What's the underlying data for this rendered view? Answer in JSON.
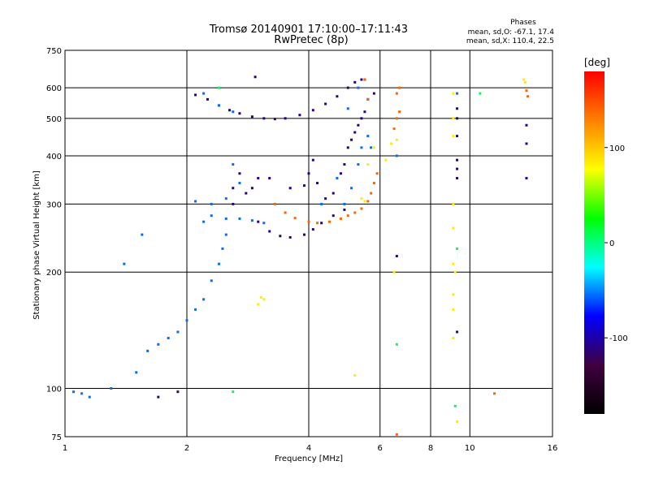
{
  "chart_data": {
    "type": "scatter",
    "title": "Tromsø 20140901 17:10:00–17:11:43",
    "subtitle": "RwPretec (8p)",
    "xlabel": "Frequency [MHz]",
    "ylabel": "Stationary phase Virtual Height [km]",
    "x_scale": "log",
    "y_scale": "log",
    "xlim": [
      1,
      16
    ],
    "ylim": [
      75,
      750
    ],
    "x_ticks": [
      1,
      2,
      4,
      6,
      8,
      10,
      16
    ],
    "y_ticks": [
      75,
      100,
      200,
      300,
      400,
      500,
      600,
      750
    ],
    "grid": true,
    "phases_header": "Phases",
    "phases_o": "mean, sd,O: -67.1, 17.4",
    "phases_x": "mean, sd,X: 110.4, 22.5",
    "colorbar": {
      "label": "[deg]",
      "range": [
        -180,
        180
      ],
      "ticks": [
        100,
        0,
        -100
      ],
      "colors": [
        "#ff0000",
        "#ff8000",
        "#ffff00",
        "#00ff00",
        "#00ffff",
        "#0000ff",
        "#400040",
        "#000000"
      ]
    },
    "series": [
      {
        "phase": -110,
        "points": [
          [
            2.1,
            575
          ],
          [
            2.25,
            560
          ],
          [
            2.4,
            540
          ],
          [
            2.55,
            525
          ],
          [
            2.7,
            515
          ],
          [
            2.9,
            505
          ],
          [
            3.1,
            500
          ],
          [
            3.3,
            498
          ],
          [
            3.5,
            500
          ],
          [
            3.8,
            510
          ],
          [
            4.1,
            525
          ],
          [
            4.4,
            545
          ],
          [
            4.7,
            570
          ],
          [
            5.0,
            600
          ],
          [
            5.2,
            620
          ],
          [
            5.4,
            630
          ],
          [
            5.5,
            630
          ],
          [
            2.8,
            320
          ],
          [
            2.9,
            330
          ],
          [
            3.0,
            350
          ],
          [
            3.2,
            350
          ],
          [
            3.6,
            330
          ],
          [
            3.9,
            335
          ],
          [
            4.0,
            360
          ],
          [
            4.1,
            390
          ],
          [
            4.2,
            340
          ],
          [
            4.4,
            310
          ],
          [
            4.6,
            320
          ],
          [
            4.8,
            360
          ],
          [
            4.9,
            380
          ],
          [
            5.0,
            420
          ],
          [
            5.1,
            440
          ],
          [
            5.2,
            460
          ],
          [
            5.3,
            480
          ],
          [
            5.4,
            500
          ],
          [
            5.5,
            520
          ],
          [
            5.6,
            560
          ],
          [
            5.8,
            580
          ],
          [
            3.0,
            270
          ],
          [
            3.2,
            255
          ],
          [
            3.4,
            248
          ],
          [
            3.6,
            246
          ],
          [
            3.9,
            250
          ],
          [
            4.1,
            258
          ],
          [
            4.3,
            268
          ],
          [
            4.6,
            280
          ],
          [
            4.9,
            290
          ],
          [
            2.6,
            300
          ],
          [
            1.9,
            98
          ],
          [
            1.7,
            95
          ],
          [
            2.95,
            640
          ],
          [
            6.6,
            220
          ],
          [
            9.3,
            350
          ],
          [
            9.3,
            370
          ],
          [
            9.3,
            390
          ],
          [
            9.3,
            450
          ],
          [
            9.3,
            500
          ],
          [
            9.3,
            530
          ],
          [
            9.3,
            140
          ],
          [
            13.8,
            350
          ],
          [
            13.8,
            430
          ],
          [
            13.8,
            480
          ],
          [
            2.6,
            330
          ],
          [
            2.7,
            360
          ]
        ]
      },
      {
        "phase": -55,
        "points": [
          [
            1.05,
            98
          ],
          [
            1.1,
            97
          ],
          [
            1.15,
            95
          ],
          [
            1.3,
            100
          ],
          [
            1.5,
            110
          ],
          [
            1.6,
            125
          ],
          [
            1.7,
            130
          ],
          [
            1.8,
            135
          ],
          [
            1.9,
            140
          ],
          [
            2.0,
            150
          ],
          [
            2.1,
            160
          ],
          [
            2.2,
            170
          ],
          [
            2.3,
            190
          ],
          [
            2.4,
            210
          ],
          [
            2.45,
            230
          ],
          [
            2.5,
            250
          ],
          [
            2.2,
            270
          ],
          [
            2.3,
            280
          ],
          [
            2.5,
            275
          ],
          [
            2.7,
            275
          ],
          [
            2.9,
            272
          ],
          [
            3.1,
            268
          ],
          [
            2.4,
            540
          ],
          [
            2.6,
            520
          ],
          [
            2.2,
            580
          ],
          [
            2.6,
            380
          ],
          [
            2.7,
            340
          ],
          [
            2.5,
            310
          ],
          [
            2.3,
            300
          ],
          [
            2.1,
            305
          ],
          [
            4.7,
            350
          ],
          [
            4.9,
            300
          ],
          [
            5.1,
            330
          ],
          [
            5.3,
            380
          ],
          [
            5.4,
            420
          ],
          [
            5.6,
            450
          ],
          [
            1.55,
            250
          ],
          [
            1.4,
            210
          ],
          [
            5.0,
            530
          ],
          [
            5.3,
            600
          ],
          [
            9.3,
            580
          ],
          [
            6.6,
            400
          ],
          [
            5.7,
            420
          ],
          [
            4.3,
            300
          ]
        ]
      },
      {
        "phase": 140,
        "points": [
          [
            3.3,
            300
          ],
          [
            3.5,
            285
          ],
          [
            3.7,
            276
          ],
          [
            4.0,
            270
          ],
          [
            4.2,
            268
          ],
          [
            4.5,
            270
          ],
          [
            4.8,
            275
          ],
          [
            5.0,
            280
          ],
          [
            5.2,
            285
          ],
          [
            5.4,
            292
          ],
          [
            5.6,
            305
          ],
          [
            5.7,
            320
          ],
          [
            5.8,
            340
          ],
          [
            5.9,
            360
          ],
          [
            6.5,
            470
          ],
          [
            6.6,
            500
          ],
          [
            6.7,
            520
          ],
          [
            5.6,
            560
          ],
          [
            5.5,
            630
          ],
          [
            6.6,
            580
          ],
          [
            6.7,
            600
          ],
          [
            13.8,
            590
          ],
          [
            13.9,
            570
          ],
          [
            6.6,
            76
          ],
          [
            11.5,
            97
          ]
        ]
      },
      {
        "phase": 85,
        "points": [
          [
            3.0,
            165
          ],
          [
            3.05,
            172
          ],
          [
            3.1,
            170
          ],
          [
            5.4,
            310
          ],
          [
            5.5,
            305
          ],
          [
            5.6,
            380
          ],
          [
            5.8,
            420
          ],
          [
            6.2,
            390
          ],
          [
            6.4,
            430
          ],
          [
            6.6,
            440
          ],
          [
            9.1,
            580
          ],
          [
            9.1,
            500
          ],
          [
            9.1,
            450
          ],
          [
            9.1,
            300
          ],
          [
            9.1,
            260
          ],
          [
            9.1,
            210
          ],
          [
            9.1,
            175
          ],
          [
            9.1,
            160
          ],
          [
            9.1,
            135
          ],
          [
            9.2,
            200
          ],
          [
            9.3,
            82
          ],
          [
            5.2,
            108
          ],
          [
            6.5,
            200
          ],
          [
            13.6,
            630
          ],
          [
            13.7,
            620
          ]
        ]
      },
      {
        "phase": 10,
        "points": [
          [
            6.6,
            130
          ],
          [
            9.2,
            90
          ],
          [
            2.6,
            98
          ],
          [
            9.3,
            230
          ],
          [
            2.4,
            600
          ],
          [
            10.6,
            580
          ]
        ]
      }
    ]
  }
}
